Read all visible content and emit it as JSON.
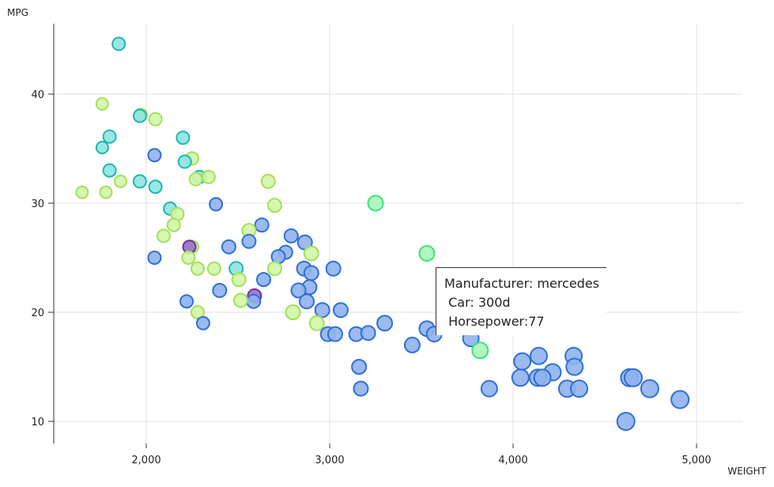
{
  "chart_data": {
    "type": "scatter",
    "xlabel": "WEIGHT",
    "ylabel": "MPG",
    "xlim": [
      1500,
      5250
    ],
    "ylim": [
      8,
      45
    ],
    "xticks": [
      2000,
      3000,
      4000,
      5000
    ],
    "xtick_labels": [
      "2,000",
      "3,000",
      "4,000",
      "5,000"
    ],
    "yticks": [
      10,
      20,
      30,
      40
    ],
    "ytick_labels": [
      "10",
      "20",
      "30",
      "40"
    ],
    "grid": true,
    "colors": {
      "blue_fill": "#8fb3ee",
      "blue_stroke": "#2f6fd6",
      "cyan_fill": "#8fe3e0",
      "cyan_stroke": "#1bb8b3",
      "lime_fill": "#d3f5a6",
      "lime_stroke": "#a3e05a",
      "green_fill": "#a7f5b8",
      "green_stroke": "#3ee079",
      "purple_fill": "#9a6fcf",
      "purple_stroke": "#6a2fa8"
    },
    "points": [
      {
        "x": 1850,
        "y": 44.6,
        "c": "cyan",
        "s": 8
      },
      {
        "x": 1760,
        "y": 39.1,
        "c": "lime",
        "s": 7.5
      },
      {
        "x": 1970,
        "y": 38.1,
        "c": "lime",
        "s": 8
      },
      {
        "x": 1965,
        "y": 38,
        "c": "cyan",
        "s": 8
      },
      {
        "x": 2050,
        "y": 37.7,
        "c": "lime",
        "s": 8
      },
      {
        "x": 1800,
        "y": 36.1,
        "c": "cyan",
        "s": 8
      },
      {
        "x": 2200,
        "y": 36,
        "c": "cyan",
        "s": 8
      },
      {
        "x": 1760,
        "y": 35.1,
        "c": "cyan",
        "s": 7.5
      },
      {
        "x": 2045,
        "y": 34.4,
        "c": "blue",
        "s": 8
      },
      {
        "x": 2250,
        "y": 34.1,
        "c": "lime",
        "s": 8
      },
      {
        "x": 2210,
        "y": 33.8,
        "c": "cyan",
        "s": 8
      },
      {
        "x": 1800,
        "y": 33,
        "c": "cyan",
        "s": 8
      },
      {
        "x": 2290,
        "y": 32.4,
        "c": "cyan",
        "s": 8
      },
      {
        "x": 2340,
        "y": 32.4,
        "c": "lime",
        "s": 8
      },
      {
        "x": 2270,
        "y": 32.2,
        "c": "lime",
        "s": 8
      },
      {
        "x": 1860,
        "y": 32,
        "c": "lime",
        "s": 7.5
      },
      {
        "x": 1965,
        "y": 32,
        "c": "cyan",
        "s": 8
      },
      {
        "x": 2665,
        "y": 32,
        "c": "lime",
        "s": 8.5
      },
      {
        "x": 2050,
        "y": 31.5,
        "c": "cyan",
        "s": 8
      },
      {
        "x": 1650,
        "y": 31,
        "c": "lime",
        "s": 7.5
      },
      {
        "x": 1780,
        "y": 31,
        "c": "lime",
        "s": 7.5
      },
      {
        "x": 2380,
        "y": 29.9,
        "c": "blue",
        "s": 8
      },
      {
        "x": 2700,
        "y": 29.8,
        "c": "lime",
        "s": 8.5
      },
      {
        "x": 3250,
        "y": 30,
        "c": "green",
        "s": 9.5
      },
      {
        "x": 2130,
        "y": 29.5,
        "c": "cyan",
        "s": 8
      },
      {
        "x": 2170,
        "y": 29,
        "c": "lime",
        "s": 8
      },
      {
        "x": 2150,
        "y": 28,
        "c": "lime",
        "s": 8
      },
      {
        "x": 2630,
        "y": 28,
        "c": "blue",
        "s": 8.5
      },
      {
        "x": 2560,
        "y": 27.5,
        "c": "lime",
        "s": 8.5
      },
      {
        "x": 2790,
        "y": 27,
        "c": "blue",
        "s": 8.5
      },
      {
        "x": 2095,
        "y": 27,
        "c": "lime",
        "s": 8
      },
      {
        "x": 2560,
        "y": 26.5,
        "c": "blue",
        "s": 8.5
      },
      {
        "x": 2865,
        "y": 26.4,
        "c": "blue",
        "s": 9
      },
      {
        "x": 2250,
        "y": 26,
        "c": "lime",
        "s": 8
      },
      {
        "x": 2235,
        "y": 26,
        "c": "purple",
        "s": 8
      },
      {
        "x": 2450,
        "y": 26,
        "c": "blue",
        "s": 8.5
      },
      {
        "x": 2760,
        "y": 25.5,
        "c": "blue",
        "s": 8.5
      },
      {
        "x": 3530,
        "y": 25.4,
        "c": "green",
        "s": 9.5
      },
      {
        "x": 2900,
        "y": 25.4,
        "c": "lime",
        "s": 9
      },
      {
        "x": 2720,
        "y": 25.1,
        "c": "blue",
        "s": 8.5
      },
      {
        "x": 2045,
        "y": 25,
        "c": "blue",
        "s": 8
      },
      {
        "x": 2230,
        "y": 25,
        "c": "lime",
        "s": 8
      },
      {
        "x": 2490,
        "y": 24,
        "c": "cyan",
        "s": 8.5
      },
      {
        "x": 2280,
        "y": 24,
        "c": "lime",
        "s": 8
      },
      {
        "x": 2370,
        "y": 24,
        "c": "lime",
        "s": 8
      },
      {
        "x": 2700,
        "y": 24,
        "c": "lime",
        "s": 8.5
      },
      {
        "x": 2860,
        "y": 24,
        "c": "blue",
        "s": 9
      },
      {
        "x": 3020,
        "y": 24,
        "c": "blue",
        "s": 9
      },
      {
        "x": 2900,
        "y": 23.6,
        "c": "blue",
        "s": 9
      },
      {
        "x": 2640,
        "y": 23,
        "c": "blue",
        "s": 8.5
      },
      {
        "x": 2505,
        "y": 23,
        "c": "lime",
        "s": 8.5
      },
      {
        "x": 2890,
        "y": 22.3,
        "c": "blue",
        "s": 9
      },
      {
        "x": 2400,
        "y": 22,
        "c": "blue",
        "s": 8.5
      },
      {
        "x": 2830,
        "y": 22,
        "c": "blue",
        "s": 9
      },
      {
        "x": 2590,
        "y": 21.5,
        "c": "purple",
        "s": 8.5
      },
      {
        "x": 2585,
        "y": 21,
        "c": "blue",
        "s": 8.5
      },
      {
        "x": 2515,
        "y": 21.1,
        "c": "lime",
        "s": 8.5
      },
      {
        "x": 2220,
        "y": 21,
        "c": "blue",
        "s": 8
      },
      {
        "x": 2875,
        "y": 21,
        "c": "blue",
        "s": 9
      },
      {
        "x": 2960,
        "y": 20.2,
        "c": "blue",
        "s": 9
      },
      {
        "x": 3060,
        "y": 20.2,
        "c": "blue",
        "s": 9
      },
      {
        "x": 2800,
        "y": 20,
        "c": "lime",
        "s": 9
      },
      {
        "x": 2280,
        "y": 20,
        "c": "lime",
        "s": 8
      },
      {
        "x": 2310,
        "y": 19,
        "c": "blue",
        "s": 8
      },
      {
        "x": 2930,
        "y": 19,
        "c": "lime",
        "s": 9
      },
      {
        "x": 3300,
        "y": 19,
        "c": "blue",
        "s": 9.5
      },
      {
        "x": 3530,
        "y": 18.5,
        "c": "blue",
        "s": 9.5
      },
      {
        "x": 2990,
        "y": 18,
        "c": "blue",
        "s": 9
      },
      {
        "x": 3030,
        "y": 18,
        "c": "blue",
        "s": 9
      },
      {
        "x": 3145,
        "y": 18,
        "c": "blue",
        "s": 9
      },
      {
        "x": 3210,
        "y": 18.1,
        "c": "blue",
        "s": 9
      },
      {
        "x": 3570,
        "y": 18,
        "c": "blue",
        "s": 9.5
      },
      {
        "x": 3770,
        "y": 17.6,
        "c": "blue",
        "s": 10
      },
      {
        "x": 3450,
        "y": 17,
        "c": "blue",
        "s": 9.5
      },
      {
        "x": 3820,
        "y": 16.5,
        "c": "green",
        "s": 10
      },
      {
        "x": 4140,
        "y": 16,
        "c": "blue",
        "s": 10.5
      },
      {
        "x": 4330,
        "y": 16,
        "c": "blue",
        "s": 10.5
      },
      {
        "x": 4050,
        "y": 15.5,
        "c": "blue",
        "s": 10.5
      },
      {
        "x": 3160,
        "y": 15,
        "c": "blue",
        "s": 9
      },
      {
        "x": 4335,
        "y": 15,
        "c": "blue",
        "s": 10.5
      },
      {
        "x": 4215,
        "y": 14.5,
        "c": "blue",
        "s": 10.5
      },
      {
        "x": 4040,
        "y": 14,
        "c": "blue",
        "s": 10.5
      },
      {
        "x": 4135,
        "y": 14,
        "c": "blue",
        "s": 10.5
      },
      {
        "x": 4160,
        "y": 14,
        "c": "blue",
        "s": 10.5
      },
      {
        "x": 4635,
        "y": 14,
        "c": "blue",
        "s": 11
      },
      {
        "x": 4655,
        "y": 14,
        "c": "blue",
        "s": 11
      },
      {
        "x": 3170,
        "y": 13,
        "c": "blue",
        "s": 9
      },
      {
        "x": 3870,
        "y": 13,
        "c": "blue",
        "s": 10
      },
      {
        "x": 4295,
        "y": 13,
        "c": "blue",
        "s": 10.5
      },
      {
        "x": 4360,
        "y": 13,
        "c": "blue",
        "s": 10.5
      },
      {
        "x": 4745,
        "y": 13,
        "c": "blue",
        "s": 11
      },
      {
        "x": 4910,
        "y": 12,
        "c": "blue",
        "s": 11
      },
      {
        "x": 4615,
        "y": 10,
        "c": "blue",
        "s": 11
      }
    ]
  },
  "tooltip": {
    "manufacturer": "Manufacturer: mercedes",
    "car": " Car: 300d",
    "horsepower": " Horsepower:77"
  }
}
